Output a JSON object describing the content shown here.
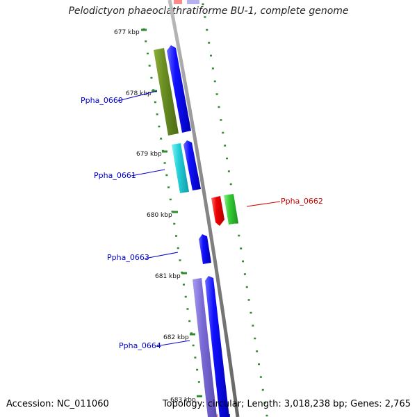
{
  "title": "Pelodictyon phaeoclathratiforme BU-1, complete genome",
  "footer": {
    "accession": "Accession: NC_011060",
    "summary": "Topology: circular; Length: 3,018,238 bp; Genes: 2,765"
  },
  "ticks": [
    {
      "label": "677 kbp"
    },
    {
      "label": "678 kbp"
    },
    {
      "label": "679 kbp"
    },
    {
      "label": "680 kbp"
    },
    {
      "label": "681 kbp"
    },
    {
      "label": "682 kbp"
    },
    {
      "label": "683 kbp"
    }
  ],
  "genes": [
    {
      "label": "Ppha_0660",
      "color": "#0000cc"
    },
    {
      "label": "Ppha_0661",
      "color": "#0000cc"
    },
    {
      "label": "Ppha_0662",
      "color": "#cc0000"
    },
    {
      "label": "Ppha_0663",
      "color": "#0000cc"
    },
    {
      "label": "Ppha_0664",
      "color": "#0000cc"
    }
  ],
  "colors": {
    "backbone": "#8c8c8c",
    "cds": "#0000ee",
    "olive": "#6b8e23",
    "cyan": "#1ec8d2",
    "red": "#ee0000",
    "green": "#33cc33",
    "lavender": "#7a6ad6",
    "dots": "#2e8b2e"
  }
}
